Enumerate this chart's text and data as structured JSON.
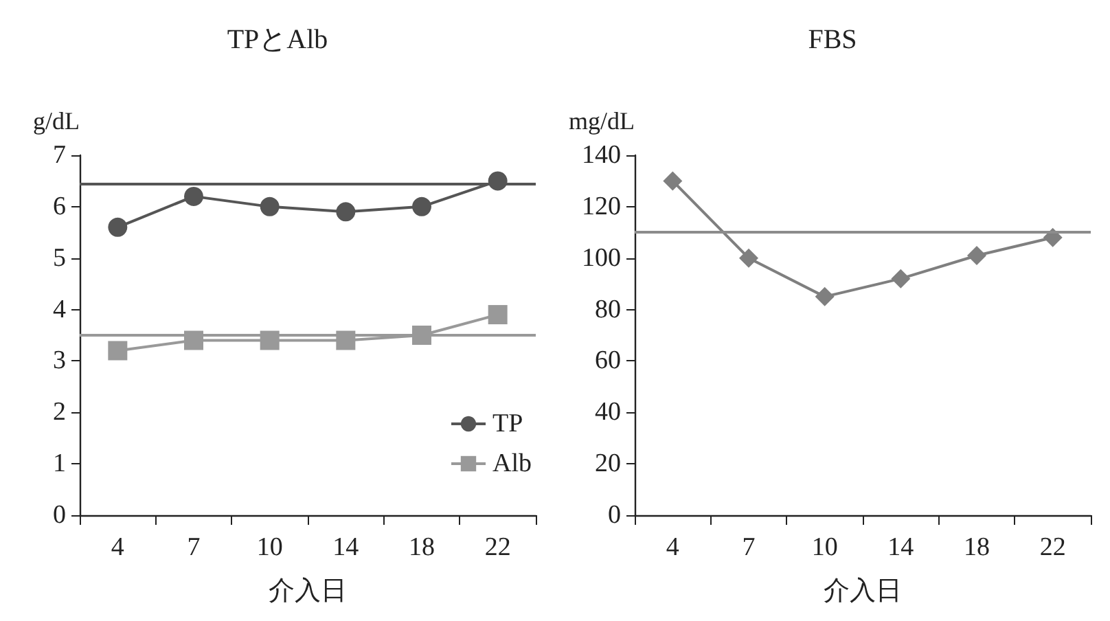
{
  "chart_data": [
    {
      "type": "line",
      "title": "TPとAlb",
      "xlabel": "介入日",
      "ylabel": "g/dL",
      "categories": [
        "4",
        "7",
        "10",
        "14",
        "18",
        "22"
      ],
      "series": [
        {
          "name": "TP",
          "color": "#555555",
          "marker": "circle",
          "values": [
            5.6,
            6.2,
            6.0,
            5.9,
            6.0,
            6.5
          ]
        },
        {
          "name": "Alb",
          "color": "#999999",
          "marker": "square",
          "values": [
            3.2,
            3.4,
            3.4,
            3.4,
            3.5,
            3.9
          ]
        }
      ],
      "ylim": [
        0,
        7
      ],
      "yticks": [
        0,
        1,
        2,
        3,
        4,
        5,
        6,
        7
      ],
      "legend": "bottom right",
      "ref_lines": [
        {
          "axis": "y",
          "value": 6.45,
          "color": "#555555"
        },
        {
          "axis": "y",
          "value": 3.5,
          "color": "#999999"
        }
      ]
    },
    {
      "type": "line",
      "title": "FBS",
      "xlabel": "介入日",
      "ylabel": "mg/dL",
      "categories": [
        "4",
        "7",
        "10",
        "14",
        "18",
        "22"
      ],
      "series": [
        {
          "color": "#7f7f7f",
          "marker": "diamond",
          "values": [
            130,
            100,
            85,
            92,
            101,
            108
          ]
        }
      ],
      "ylim": [
        0,
        140
      ],
      "yticks": [
        0,
        20,
        40,
        60,
        80,
        100,
        120,
        140
      ],
      "ref_lines": [
        {
          "axis": "y",
          "value": 110,
          "color": "#8c8c8c"
        }
      ]
    }
  ]
}
